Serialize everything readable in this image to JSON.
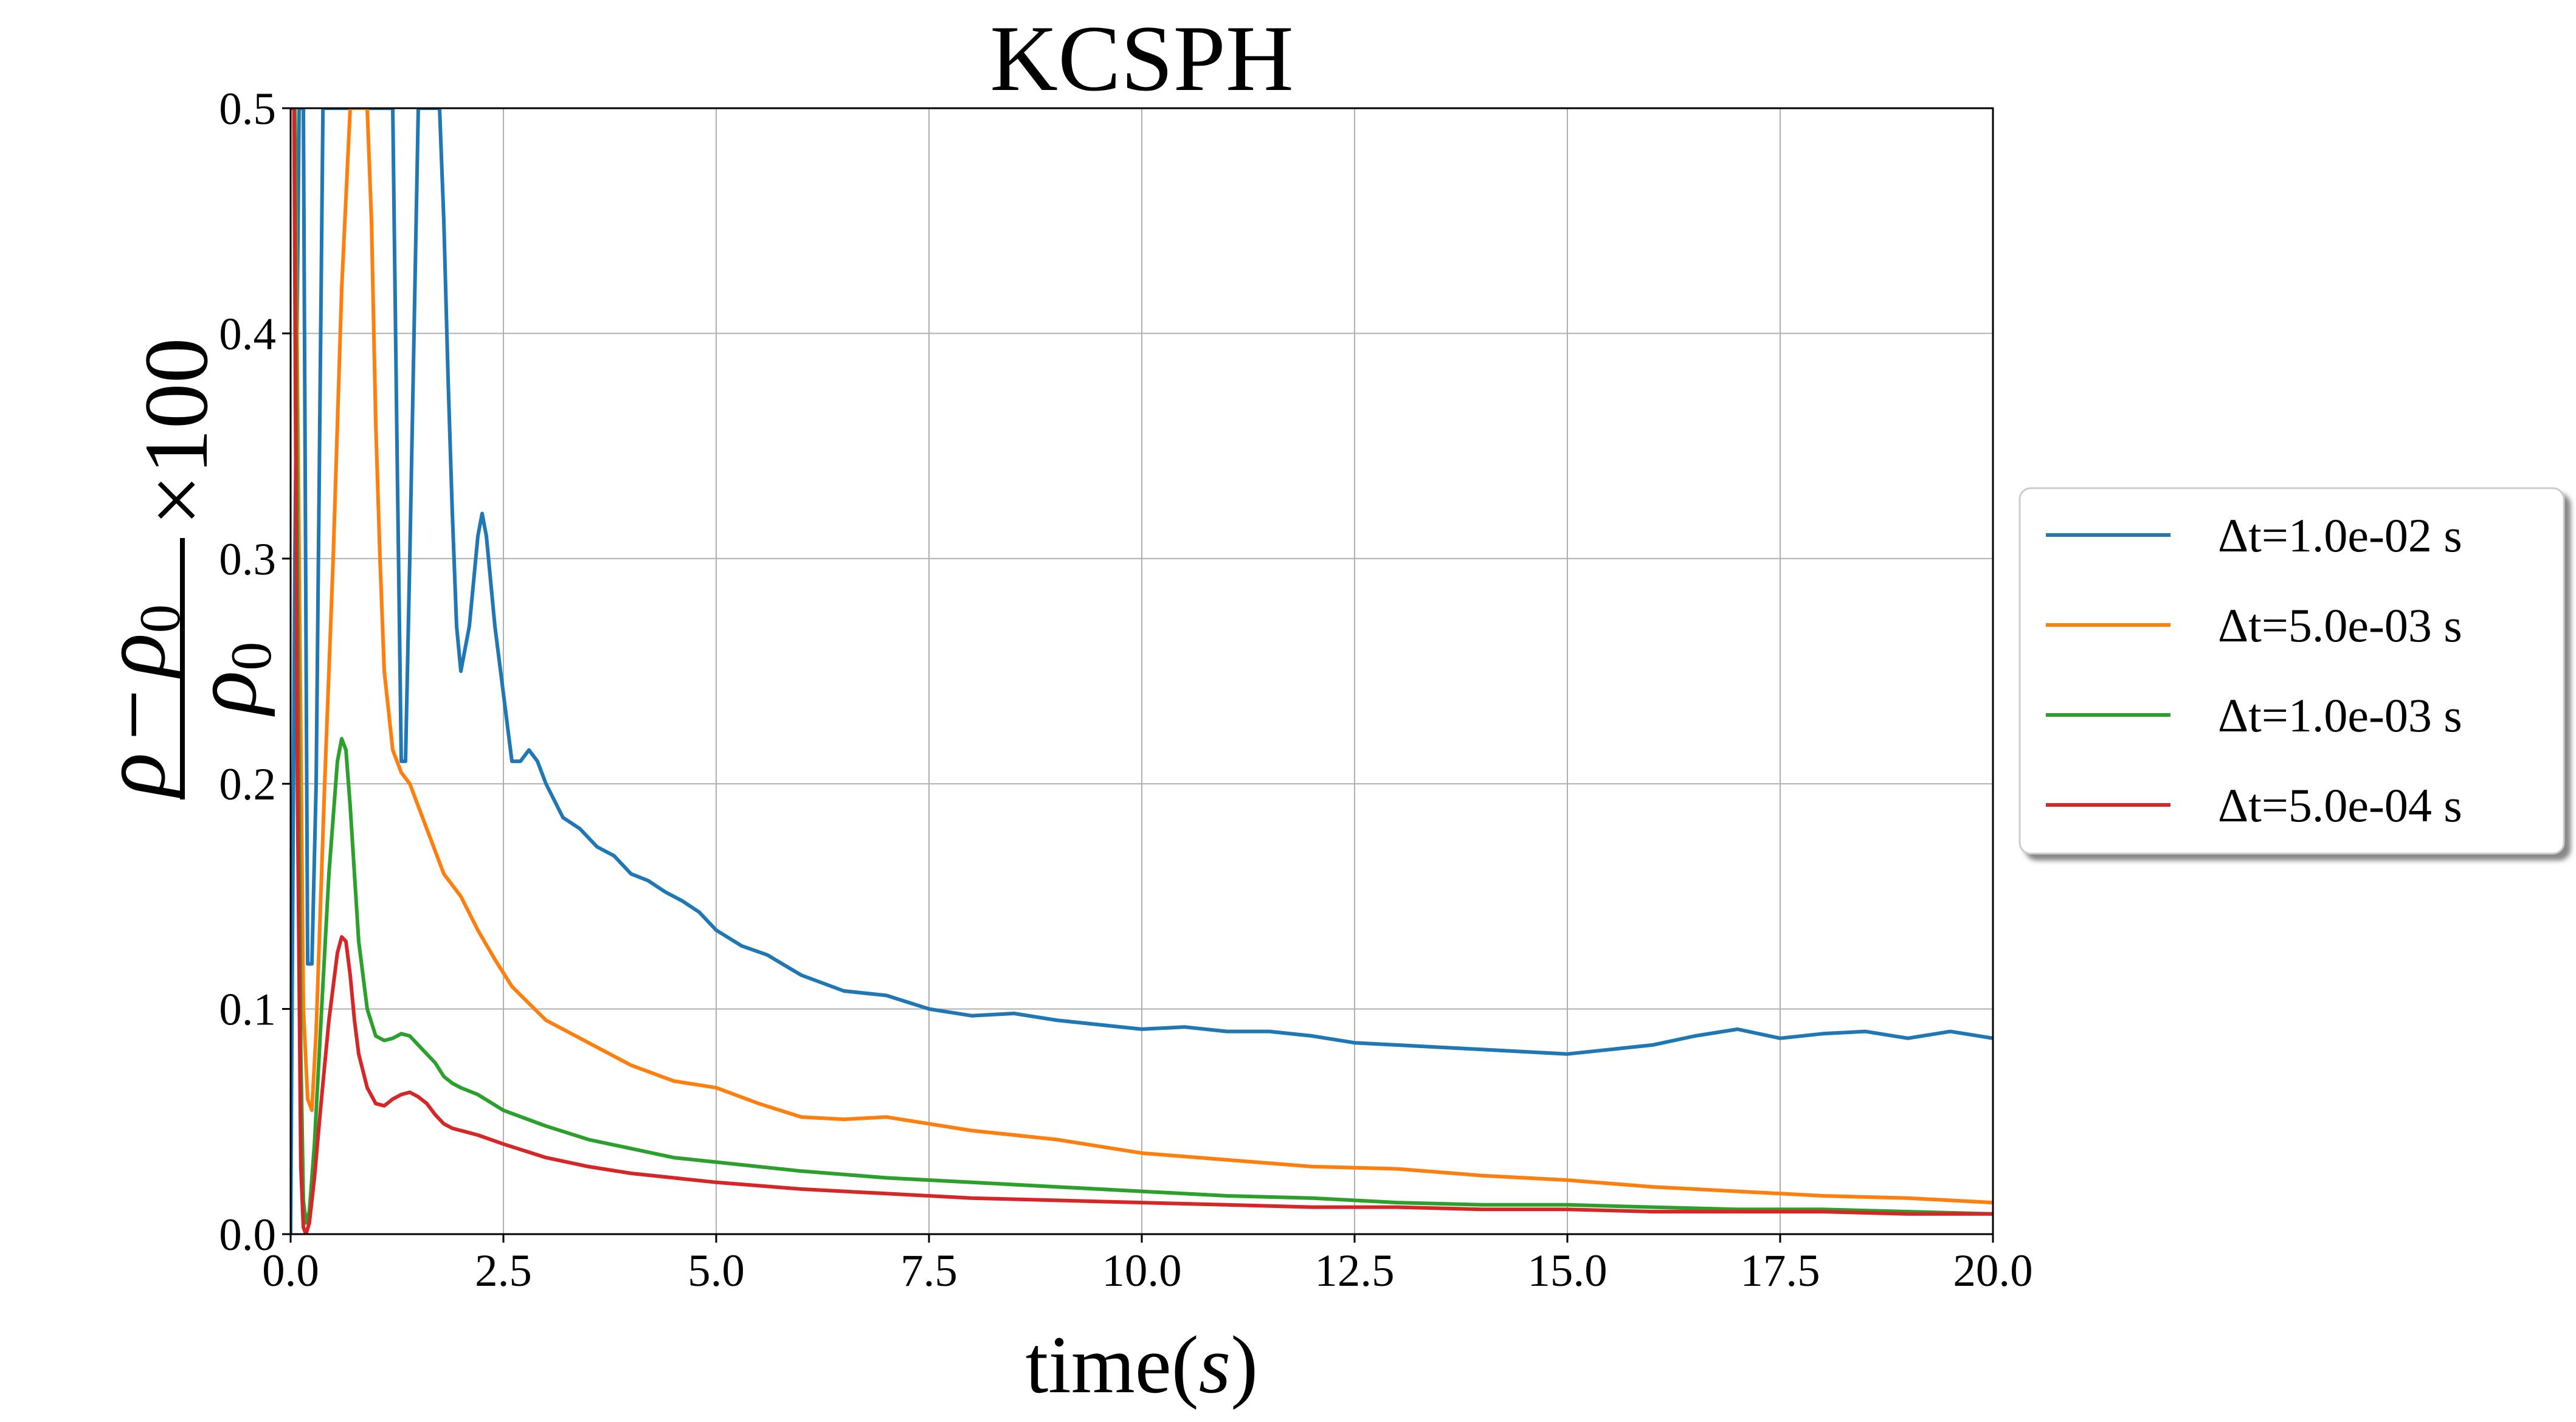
{
  "chart_data": {
    "type": "line",
    "title": "KCSPH",
    "xlabel": "time(s)",
    "xlabel_parts": {
      "word": "time(",
      "var": "s",
      "close": ")"
    },
    "ylabel_parts": {
      "rho": "ρ",
      "minus": "−",
      "sub0": "0",
      "times": "×",
      "hundred": "100"
    },
    "xlim": [
      0,
      20
    ],
    "ylim": [
      0,
      0.5
    ],
    "xticks": [
      0,
      2.5,
      5,
      7.5,
      10,
      12.5,
      15,
      17.5,
      20
    ],
    "xtick_labels": [
      "0.0",
      "2.5",
      "5.0",
      "7.5",
      "10.0",
      "12.5",
      "15.0",
      "17.5",
      "20.0"
    ],
    "yticks": [
      0,
      0.1,
      0.2,
      0.3,
      0.4,
      0.5
    ],
    "ytick_labels": [
      "0.0",
      "0.1",
      "0.2",
      "0.3",
      "0.4",
      "0.5"
    ],
    "grid": true,
    "legend_position": "right outside, vertically centered",
    "series": [
      {
        "name": "Δt=1.0e-02 s",
        "color": "#1f77b4",
        "x": [
          0,
          0.05,
          0.1,
          0.15,
          0.2,
          0.25,
          0.3,
          0.38,
          0.45,
          0.55,
          0.7,
          0.85,
          1.0,
          1.1,
          1.15,
          1.2,
          1.25,
          1.3,
          1.35,
          1.4,
          1.5,
          1.6,
          1.65,
          1.7,
          1.75,
          1.8,
          1.85,
          1.9,
          1.95,
          2.0,
          2.1,
          2.2,
          2.25,
          2.3,
          2.4,
          2.5,
          2.6,
          2.7,
          2.8,
          2.9,
          3.0,
          3.2,
          3.4,
          3.6,
          3.8,
          4.0,
          4.2,
          4.4,
          4.6,
          4.8,
          5.0,
          5.3,
          5.6,
          6.0,
          6.5,
          7.0,
          7.5,
          8.0,
          8.5,
          9.0,
          9.5,
          10.0,
          10.5,
          11.0,
          11.5,
          12.0,
          12.5,
          13.0,
          13.5,
          14.0,
          14.5,
          15.0,
          15.5,
          16.0,
          16.5,
          17.0,
          17.5,
          18.0,
          18.5,
          19.0,
          19.5,
          20.0
        ],
        "y": [
          0.0,
          0.3,
          0.5,
          0.5,
          0.12,
          0.12,
          0.2,
          0.5,
          0.5,
          0.5,
          0.5,
          0.5,
          0.5,
          0.5,
          0.5,
          0.5,
          0.35,
          0.21,
          0.21,
          0.3,
          0.5,
          0.5,
          0.5,
          0.5,
          0.5,
          0.45,
          0.38,
          0.32,
          0.27,
          0.25,
          0.27,
          0.31,
          0.32,
          0.31,
          0.27,
          0.24,
          0.21,
          0.21,
          0.215,
          0.21,
          0.2,
          0.185,
          0.18,
          0.172,
          0.168,
          0.16,
          0.157,
          0.152,
          0.148,
          0.143,
          0.135,
          0.128,
          0.124,
          0.115,
          0.108,
          0.106,
          0.1,
          0.097,
          0.098,
          0.095,
          0.093,
          0.091,
          0.092,
          0.09,
          0.09,
          0.088,
          0.085,
          0.084,
          0.083,
          0.082,
          0.081,
          0.08,
          0.082,
          0.084,
          0.088,
          0.091,
          0.087,
          0.089,
          0.09,
          0.087,
          0.09,
          0.087
        ]
      },
      {
        "name": "Δt=5.0e-03 s",
        "color": "#ff7f0e",
        "x": [
          0,
          0.05,
          0.1,
          0.15,
          0.2,
          0.25,
          0.3,
          0.4,
          0.5,
          0.6,
          0.7,
          0.75,
          0.8,
          0.85,
          0.9,
          0.95,
          1.0,
          1.05,
          1.1,
          1.2,
          1.3,
          1.4,
          1.6,
          1.8,
          2.0,
          2.2,
          2.4,
          2.6,
          3.0,
          3.5,
          4.0,
          4.5,
          5.0,
          5.5,
          6.0,
          6.5,
          7.0,
          7.5,
          8.0,
          9.0,
          10.0,
          11.0,
          12.0,
          13.0,
          14.0,
          15.0,
          16.0,
          17.0,
          18.0,
          19.0,
          20.0
        ],
        "y": [
          0.5,
          0.5,
          0.3,
          0.1,
          0.06,
          0.055,
          0.09,
          0.2,
          0.3,
          0.42,
          0.5,
          0.5,
          0.5,
          0.5,
          0.5,
          0.45,
          0.36,
          0.3,
          0.25,
          0.215,
          0.205,
          0.2,
          0.18,
          0.16,
          0.15,
          0.135,
          0.122,
          0.11,
          0.095,
          0.085,
          0.075,
          0.068,
          0.065,
          0.058,
          0.052,
          0.051,
          0.052,
          0.049,
          0.046,
          0.042,
          0.036,
          0.033,
          0.03,
          0.029,
          0.026,
          0.024,
          0.021,
          0.019,
          0.017,
          0.016,
          0.014
        ]
      },
      {
        "name": "Δt=1.0e-03 s",
        "color": "#2ca02c",
        "x": [
          0,
          0.05,
          0.08,
          0.12,
          0.15,
          0.18,
          0.22,
          0.28,
          0.35,
          0.45,
          0.55,
          0.6,
          0.65,
          0.7,
          0.75,
          0.8,
          0.9,
          1.0,
          1.1,
          1.2,
          1.3,
          1.4,
          1.5,
          1.6,
          1.7,
          1.8,
          1.9,
          2.0,
          2.2,
          2.5,
          3.0,
          3.5,
          4.0,
          4.5,
          5.0,
          6.0,
          7.0,
          8.0,
          9.0,
          10.0,
          11.0,
          12.0,
          13.0,
          14.0,
          15.0,
          16.0,
          17.0,
          18.0,
          19.0,
          20.0
        ],
        "y": [
          0.5,
          0.5,
          0.3,
          0.08,
          0.015,
          0.005,
          0.01,
          0.04,
          0.09,
          0.16,
          0.21,
          0.22,
          0.215,
          0.19,
          0.16,
          0.13,
          0.1,
          0.088,
          0.086,
          0.087,
          0.089,
          0.088,
          0.084,
          0.08,
          0.076,
          0.07,
          0.067,
          0.065,
          0.062,
          0.055,
          0.048,
          0.042,
          0.038,
          0.034,
          0.032,
          0.028,
          0.025,
          0.023,
          0.021,
          0.019,
          0.017,
          0.016,
          0.014,
          0.013,
          0.013,
          0.012,
          0.011,
          0.011,
          0.01,
          0.009
        ]
      },
      {
        "name": "Δt=5.0e-04 s",
        "color": "#d62728",
        "x": [
          0,
          0.04,
          0.08,
          0.12,
          0.15,
          0.18,
          0.22,
          0.28,
          0.35,
          0.45,
          0.55,
          0.6,
          0.65,
          0.7,
          0.75,
          0.8,
          0.9,
          1.0,
          1.1,
          1.2,
          1.3,
          1.4,
          1.5,
          1.6,
          1.7,
          1.8,
          1.9,
          2.0,
          2.2,
          2.5,
          3.0,
          3.5,
          4.0,
          4.5,
          5.0,
          6.0,
          7.0,
          8.0,
          9.0,
          10.0,
          11.0,
          12.0,
          13.0,
          14.0,
          15.0,
          16.0,
          17.0,
          18.0,
          19.0,
          20.0
        ],
        "y": [
          0.5,
          0.5,
          0.2,
          0.03,
          0.003,
          0.0,
          0.005,
          0.025,
          0.055,
          0.095,
          0.125,
          0.132,
          0.13,
          0.115,
          0.095,
          0.08,
          0.065,
          0.058,
          0.057,
          0.06,
          0.062,
          0.063,
          0.061,
          0.058,
          0.053,
          0.049,
          0.047,
          0.046,
          0.044,
          0.04,
          0.034,
          0.03,
          0.027,
          0.025,
          0.023,
          0.02,
          0.018,
          0.016,
          0.015,
          0.014,
          0.013,
          0.012,
          0.012,
          0.011,
          0.011,
          0.01,
          0.01,
          0.01,
          0.009,
          0.009
        ]
      }
    ]
  }
}
